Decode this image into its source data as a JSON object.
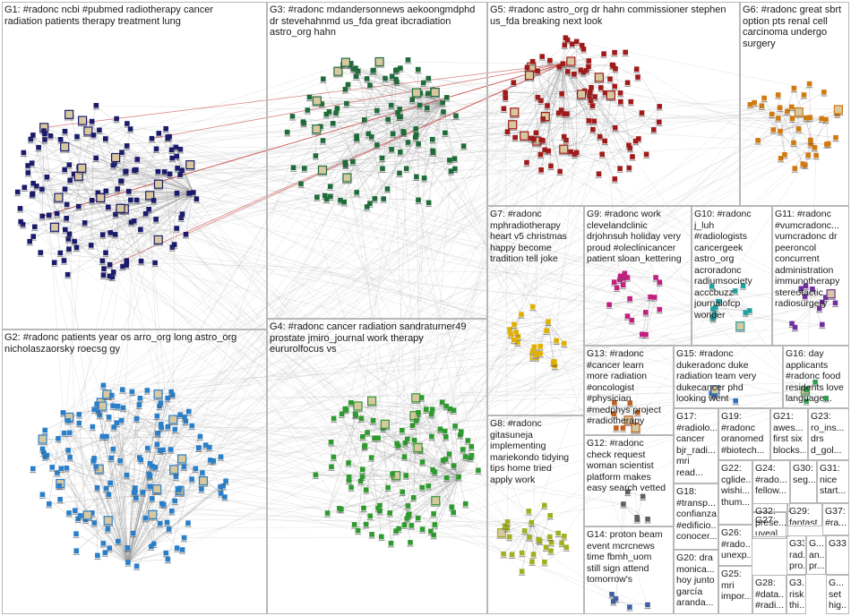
{
  "groups": [
    {
      "id": "G1",
      "label": "G1: #radonc ncbi #pubmed radiotherapy cancer\nradiation patients therapy treatment lung",
      "color": "#1b1b6b"
    },
    {
      "id": "G2",
      "label": "G2: #radonc patients year os arro_org long astro_org\nnicholaszaorsky roecsg gy",
      "color": "#2a7fc8"
    },
    {
      "id": "G3",
      "label": "G3: #radonc mdandersonnews aekoongmdphd\ndr stevehahnmd us_fda great ibcradiation\nastro_org hahn",
      "color": "#1f6b3a"
    },
    {
      "id": "G4",
      "label": "G4: #radonc cancer radiation sandraturner49\nprostate jmiro_journal work therapy\neururolfocus vs",
      "color": "#2f9a2f"
    },
    {
      "id": "G5",
      "label": "G5: #radonc astro_org dr hahn commissioner stephen\nus_fda breaking next look",
      "color": "#a01a1a"
    },
    {
      "id": "G6",
      "label": "G6: #radonc great sbrt\noption pts renal cell\ncarcinoma undergo\nsurgery",
      "color": "#d07a10"
    },
    {
      "id": "G7",
      "label": "G7: #radonc\nmphradiotherapy\nheart v5 christmas\nhappy become\ntradition tell joke",
      "color": "#e0b000"
    },
    {
      "id": "G8",
      "label": "G8: #radonc\ngitasuneja\nimplementing\nmariekondo tidying\ntips home tried\napply work",
      "color": "#a0b020"
    },
    {
      "id": "G9",
      "label": "G9: #radonc work\nclevelandclinic\ndrjohnsuh holiday very\nproud #oleclinicancer\npatient sloan_kettering",
      "color": "#c02080"
    },
    {
      "id": "G10",
      "label": "G10: #radonc\nj_luh\n#radiologists\ncancergeek\nastro_org\nacroradonc\nradiumsociety\nacccbuzz\njournalofcp\nwonder",
      "color": "#20a0a0"
    },
    {
      "id": "G11",
      "label": "G11: #radonc\n#vumcradonc...\nvumcradonc dr\npeeroncol\nconcurrent\nadministration\nimmunotherapy\nstereotactic\nradiosurgery",
      "color": "#7030a0"
    },
    {
      "id": "G12",
      "label": "G12: #radonc\ncheck request\nwoman scientist\nplatform makes\neasy search vetted",
      "color": "#606060"
    },
    {
      "id": "G13",
      "label": "G13: #radonc\n#cancer learn\nmore radiation\n#oncologist\n#physician\n#medphys project\n#radiotherapy",
      "color": "#c06020"
    },
    {
      "id": "G14",
      "label": "G14: proton beam\nevent mcrcnews\ntime fbmh_uom\nstill sign attend\ntomorrow's",
      "color": "#4060a0"
    },
    {
      "id": "G15",
      "label": "G15: #radonc\ndukeradonc duke\nradiation team very\ndukecancer phd\nlooking went",
      "color": "#3070c0"
    },
    {
      "id": "G16",
      "label": "G16: day\napplicants\n#radonc food\nresidents love\nlanguage...",
      "color": "#30a050"
    },
    {
      "id": "G17",
      "label": "G17:\n#radiolo...\ncancer\nbjr_radi...\nmri read...",
      "color": "#808080"
    },
    {
      "id": "G18",
      "label": "G18:\n#transp...\nconfianza\n#edificio...\nconocer...",
      "color": "#808080"
    },
    {
      "id": "G19",
      "label": "G19:\n#radonc\noranomed\n#biotech...",
      "color": "#808080"
    },
    {
      "id": "G20",
      "label": "G20: dra\nmonica...\nhoy junto\ngarcía\naranda...",
      "color": "#808080"
    },
    {
      "id": "G21",
      "label": "G21:\nawes...\nfirst six\nblocks...",
      "color": "#808080"
    },
    {
      "id": "G22",
      "label": "G22:\ncglide...\nwishi...\nthum...",
      "color": "#808080"
    },
    {
      "id": "G23",
      "label": "G23:\nro_ins...\ndrs\nd_gol...",
      "color": "#808080"
    },
    {
      "id": "G24",
      "label": "G24:\n#rado...\nfellow...",
      "color": "#808080"
    },
    {
      "id": "G25",
      "label": "G25:\nmri\nimpor...",
      "color": "#808080"
    },
    {
      "id": "G26",
      "label": "G26:\n#rado...\nunexp...",
      "color": "#808080"
    },
    {
      "id": "G27",
      "label": "G27:",
      "color": "#808080"
    },
    {
      "id": "G28",
      "label": "G28:\n#data...\n#radi...",
      "color": "#808080"
    },
    {
      "id": "G29",
      "label": "G29:\nfantast...",
      "color": "#808080"
    },
    {
      "id": "G30",
      "label": "G30:\nseg...",
      "color": "#808080"
    },
    {
      "id": "G31",
      "label": "G31:\nnice\nstart...",
      "color": "#808080"
    },
    {
      "id": "G32",
      "label": "G32:\nprese...\nuveal...",
      "color": "#808080"
    },
    {
      "id": "G33",
      "label": "G33:\nrad...\npro...",
      "color": "#808080"
    },
    {
      "id": "G34",
      "label": "G...\nan...\npr...",
      "color": "#808080"
    },
    {
      "id": "G35",
      "label": "G3...\nrisk\nthi...",
      "color": "#808080"
    },
    {
      "id": "G36",
      "label": "G...\nset\nhig...",
      "color": "#808080"
    },
    {
      "id": "G37",
      "label": "G37:\n#ra...",
      "color": "#808080"
    },
    {
      "id": "G38",
      "label": "G33",
      "color": "#808080"
    }
  ],
  "colors": {
    "edge": "#9a9a9a",
    "border": "#b8b8b8",
    "background": "#ffffff",
    "highlight_edge": "#c03030"
  }
}
